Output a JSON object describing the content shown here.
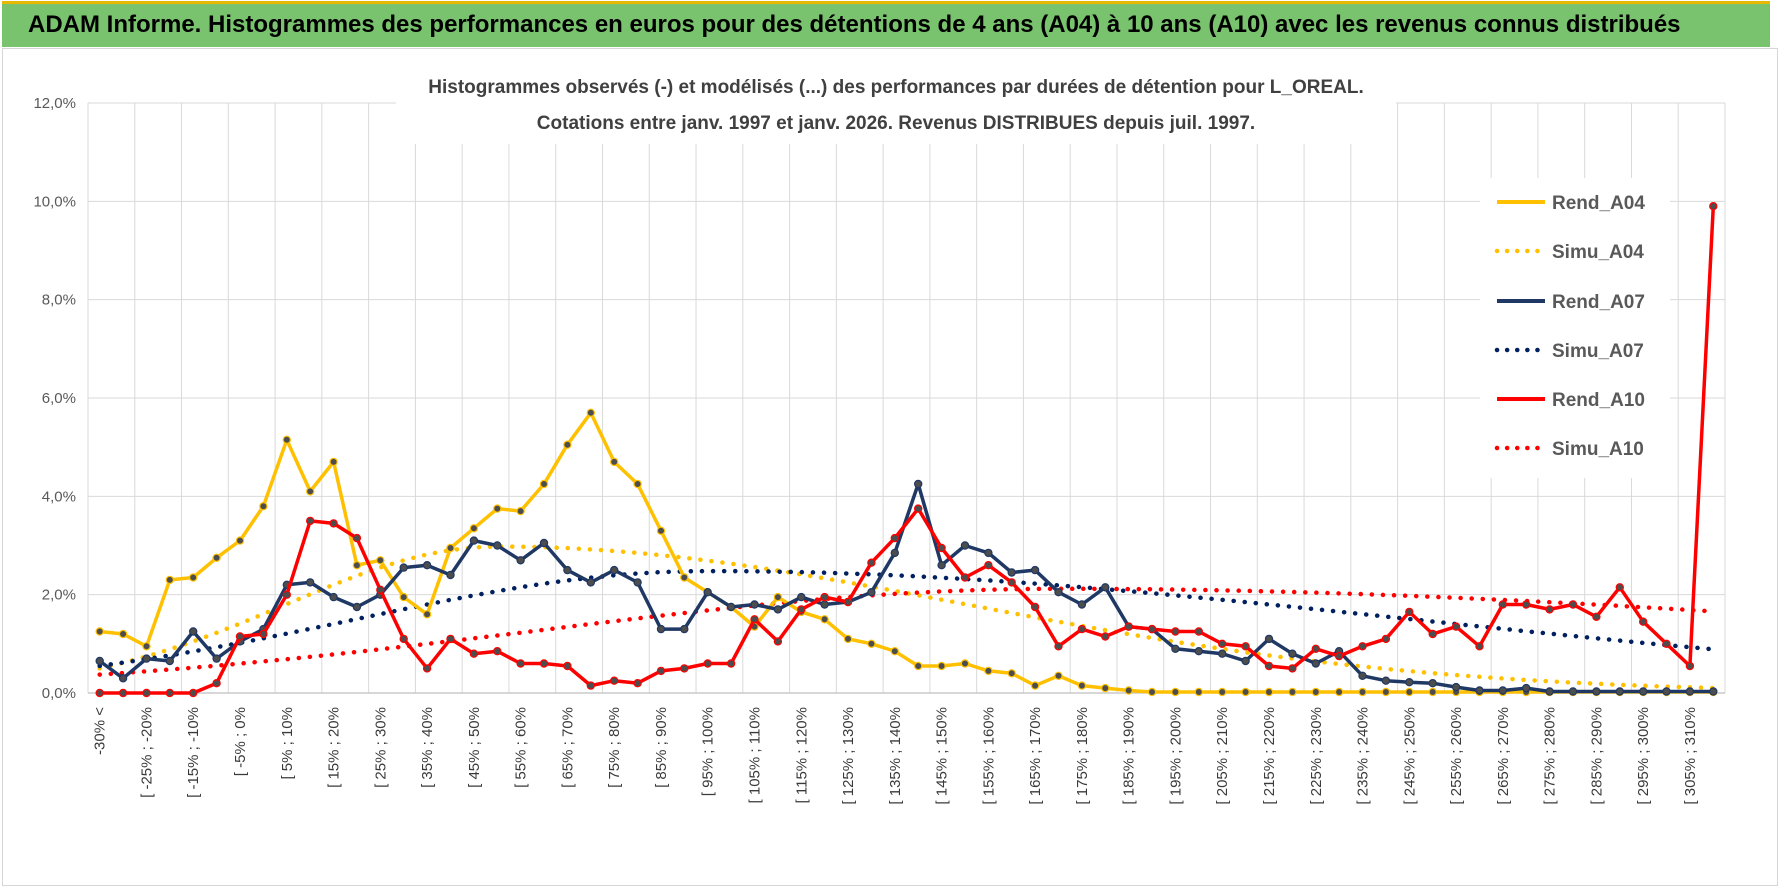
{
  "header": {
    "title": "ADAM Informe. Histogrammes des performances en euros pour des détentions de 4 ans (A04) à 10 ans (A10) avec les revenus connus distribués"
  },
  "chart_data": {
    "type": "line",
    "title_line1": "Histogrammes observés (-) et modélisés (...) des performances par durées de détention pour L_OREAL.",
    "title_line2": "Cotations entre janv. 1997 et janv. 2026. Revenus DISTRIBUES depuis juil. 1997.",
    "xlabel": "",
    "ylabel": "",
    "ylim": [
      0,
      12
    ],
    "yticks": [
      "0,0%",
      "2,0%",
      "4,0%",
      "6,0%",
      "8,0%",
      "10,0%",
      "12,0%"
    ],
    "xtick_labels": [
      "-30% <",
      "[ -25% ; -20%",
      "[ -15% ; -10%",
      "[ -5% ; 0%",
      "[ 5% ; 10%",
      "[ 15% ; 20%",
      "[ 25% ; 30%",
      "[ 35% ; 40%",
      "[ 45% ; 50%",
      "[ 55% ; 60%",
      "[ 65% ; 70%",
      "[ 75% ; 80%",
      "[ 85% ; 90%",
      "[ 95% ; 100%",
      "[ 105% ; 110%",
      "[ 115% ; 120%",
      "[ 125% ; 130%",
      "[ 135% ; 140%",
      "[ 145% ; 150%",
      "[ 155% ; 160%",
      "[ 165% ; 170%",
      "[ 175% ; 180%",
      "[ 185% ; 190%",
      "[ 195% ; 200%",
      "[ 205% ; 210%",
      "[ 215% ; 220%",
      "[ 225% ; 230%",
      "[ 235% ; 240%",
      "[ 245% ; 250%",
      "[ 255% ; 260%",
      "[ 265% ; 270%",
      "[ 275% ; 280%",
      "[ 285% ; 290%",
      "[ 295% ; 300%",
      "[ 305% ; 310%"
    ],
    "n_points": 70,
    "legend_position": "right",
    "series": [
      {
        "name": "Rend_A04",
        "style": "solid",
        "color": "#FFC000",
        "markers": true,
        "values": [
          1.25,
          1.2,
          0.95,
          2.3,
          2.35,
          2.75,
          3.1,
          3.8,
          5.15,
          4.1,
          4.7,
          2.6,
          2.7,
          1.95,
          1.6,
          2.95,
          3.35,
          3.75,
          3.7,
          4.25,
          5.05,
          5.7,
          4.7,
          4.25,
          3.3,
          2.35,
          2.05,
          1.75,
          1.35,
          1.95,
          1.65,
          1.5,
          1.1,
          1.0,
          0.85,
          0.55,
          0.55,
          0.6,
          0.45,
          0.4,
          0.15,
          0.35,
          0.15,
          0.1,
          0.05,
          0.02,
          0.02,
          0.02,
          0.02,
          0.02,
          0.02,
          0.02,
          0.02,
          0.02,
          0.02,
          0.02,
          0.02,
          0.02,
          0.02,
          0.02,
          0.02,
          0.02,
          0.02,
          0.02,
          0.02,
          0.02,
          0.02,
          0.02,
          0.02,
          0.02
        ]
      },
      {
        "name": "Simu_A04",
        "style": "dotted",
        "color": "#FFC000",
        "markers": false,
        "curve": {
          "peak_index": 17,
          "peak_value": 2.98,
          "width_left": 9.0,
          "width_right": 20.0
        }
      },
      {
        "name": "Rend_A07",
        "style": "solid",
        "color": "#1F3864",
        "markers": true,
        "values": [
          0.65,
          0.3,
          0.7,
          0.65,
          1.25,
          0.7,
          1.05,
          1.3,
          2.2,
          2.25,
          1.95,
          1.75,
          2.0,
          2.55,
          2.6,
          2.4,
          3.1,
          3.0,
          2.7,
          3.05,
          2.5,
          2.25,
          2.5,
          2.25,
          1.3,
          1.3,
          2.05,
          1.75,
          1.8,
          1.7,
          1.95,
          1.8,
          1.85,
          2.05,
          2.85,
          4.25,
          2.6,
          3.0,
          2.85,
          2.45,
          2.5,
          2.05,
          1.8,
          2.15,
          1.35,
          1.3,
          0.9,
          0.85,
          0.8,
          0.65,
          1.1,
          0.8,
          0.6,
          0.85,
          0.35,
          0.25,
          0.22,
          0.2,
          0.12,
          0.05,
          0.05,
          0.1,
          0.03,
          0.03,
          0.03,
          0.03,
          0.03,
          0.03,
          0.03,
          0.03
        ]
      },
      {
        "name": "Simu_A07",
        "style": "dotted",
        "color": "#002060",
        "markers": false,
        "curve": {
          "peak_index": 26,
          "peak_value": 2.48,
          "width_left": 15.0,
          "width_right": 30.0
        }
      },
      {
        "name": "Rend_A10",
        "style": "solid",
        "color": "#FF0000",
        "markers": true,
        "values": [
          0.0,
          0.0,
          0.0,
          0.0,
          0.0,
          0.2,
          1.15,
          1.2,
          2.0,
          3.5,
          3.45,
          3.15,
          2.1,
          1.1,
          0.5,
          1.1,
          0.8,
          0.85,
          0.6,
          0.6,
          0.55,
          0.15,
          0.25,
          0.2,
          0.45,
          0.5,
          0.6,
          0.6,
          1.5,
          1.05,
          1.7,
          1.95,
          1.85,
          2.65,
          3.15,
          3.75,
          2.95,
          2.35,
          2.6,
          2.25,
          1.75,
          0.95,
          1.3,
          1.15,
          1.35,
          1.3,
          1.25,
          1.25,
          1.0,
          0.95,
          0.55,
          0.5,
          0.9,
          0.75,
          0.95,
          1.1,
          1.65,
          1.2,
          1.35,
          0.95,
          1.8,
          1.8,
          1.7,
          1.8,
          1.55,
          2.15,
          1.45,
          1.0,
          0.55,
          9.9
        ]
      },
      {
        "name": "Simu_A10",
        "style": "dotted",
        "color": "#FF0000",
        "markers": false,
        "curve": {
          "peak_index": 41,
          "peak_value": 2.12,
          "width_left": 22.0,
          "width_right": 40.0
        }
      }
    ]
  }
}
